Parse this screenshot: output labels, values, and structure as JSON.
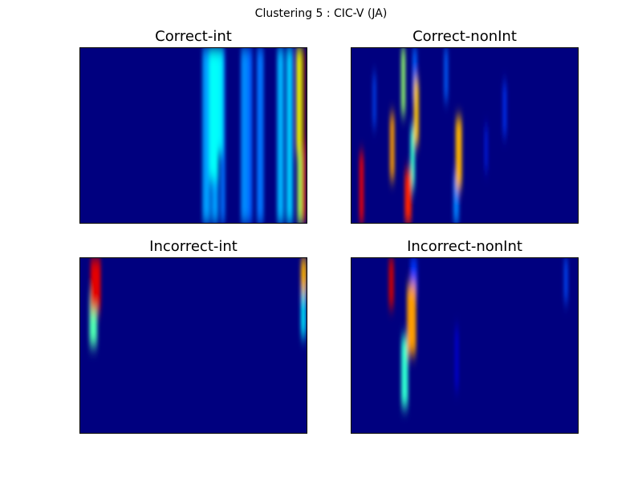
{
  "chart_data": {
    "type": "heatmap",
    "title": "Clustering 5 : CIC-V (JA)",
    "colormap": "jet",
    "background_color": "#00007f",
    "panels": [
      {
        "name": "Correct-int",
        "columns": [
          {
            "x": 0.54,
            "w": 0.035,
            "y0": 0.0,
            "y1": 1.0,
            "v": 0.28
          },
          {
            "x": 0.57,
            "w": 0.04,
            "y0": 0.0,
            "y1": 0.75,
            "v": 0.38
          },
          {
            "x": 0.595,
            "w": 0.035,
            "y0": 0.0,
            "y1": 0.6,
            "v": 0.36
          },
          {
            "x": 0.58,
            "w": 0.03,
            "y0": 0.6,
            "y1": 1.0,
            "v": 0.28
          },
          {
            "x": 0.62,
            "w": 0.02,
            "y0": 0.0,
            "y1": 1.0,
            "v": 0.24
          },
          {
            "x": 0.71,
            "w": 0.03,
            "y0": 0.0,
            "y1": 1.0,
            "v": 0.26
          },
          {
            "x": 0.73,
            "w": 0.03,
            "y0": 0.0,
            "y1": 1.0,
            "v": 0.22
          },
          {
            "x": 0.78,
            "w": 0.03,
            "y0": 0.0,
            "y1": 1.0,
            "v": 0.24
          },
          {
            "x": 0.87,
            "w": 0.03,
            "y0": 0.0,
            "y1": 1.0,
            "v": 0.3
          },
          {
            "x": 0.91,
            "w": 0.03,
            "y0": 0.0,
            "y1": 1.0,
            "v": 0.32
          },
          {
            "x": 0.955,
            "w": 0.022,
            "y0": 0.0,
            "y1": 0.6,
            "v": 0.62
          },
          {
            "x": 0.96,
            "w": 0.02,
            "y0": 0.6,
            "y1": 1.0,
            "v": 0.55
          },
          {
            "x": 0.98,
            "w": 0.016,
            "y0": 0.0,
            "y1": 0.55,
            "v": 1.0
          },
          {
            "x": 0.982,
            "w": 0.015,
            "y0": 0.55,
            "y1": 1.0,
            "v": 0.9
          }
        ]
      },
      {
        "name": "Correct-nonInt",
        "columns": [
          {
            "x": 0.035,
            "w": 0.018,
            "y0": 0.6,
            "y1": 1.0,
            "v": 0.88
          },
          {
            "x": 0.095,
            "w": 0.012,
            "y0": 0.15,
            "y1": 0.45,
            "v": 0.2
          },
          {
            "x": 0.17,
            "w": 0.02,
            "y0": 0.38,
            "y1": 0.75,
            "v": 0.72
          },
          {
            "x": 0.22,
            "w": 0.018,
            "y0": 0.0,
            "y1": 0.38,
            "v": 0.52
          },
          {
            "x": 0.235,
            "w": 0.03,
            "y0": 0.7,
            "y1": 1.0,
            "v": 0.84
          },
          {
            "x": 0.27,
            "w": 0.02,
            "y0": 0.0,
            "y1": 0.3,
            "v": 0.22
          },
          {
            "x": 0.275,
            "w": 0.022,
            "y0": 0.18,
            "y1": 0.55,
            "v": 0.68
          },
          {
            "x": 0.26,
            "w": 0.02,
            "y0": 0.45,
            "y1": 0.8,
            "v": 0.42
          },
          {
            "x": 0.41,
            "w": 0.016,
            "y0": 0.0,
            "y1": 0.3,
            "v": 0.22
          },
          {
            "x": 0.46,
            "w": 0.028,
            "y0": 0.4,
            "y1": 0.8,
            "v": 0.7
          },
          {
            "x": 0.45,
            "w": 0.025,
            "y0": 0.72,
            "y1": 1.0,
            "v": 0.25
          },
          {
            "x": 0.59,
            "w": 0.01,
            "y0": 0.45,
            "y1": 0.7,
            "v": 0.16
          },
          {
            "x": 0.67,
            "w": 0.014,
            "y0": 0.2,
            "y1": 0.5,
            "v": 0.18
          }
        ]
      },
      {
        "name": "Incorrect-int",
        "columns": [
          {
            "x": 0.045,
            "w": 0.045,
            "y0": 0.0,
            "y1": 0.3,
            "v": 0.9
          },
          {
            "x": 0.04,
            "w": 0.035,
            "y0": 0.2,
            "y1": 0.5,
            "v": 0.45
          },
          {
            "x": 0.975,
            "w": 0.025,
            "y0": 0.0,
            "y1": 0.2,
            "v": 0.7
          },
          {
            "x": 0.975,
            "w": 0.022,
            "y0": 0.15,
            "y1": 0.45,
            "v": 0.35
          }
        ]
      },
      {
        "name": "Incorrect-nonInt",
        "columns": [
          {
            "x": 0.165,
            "w": 0.022,
            "y0": 0.0,
            "y1": 0.28,
            "v": 0.92
          },
          {
            "x": 0.26,
            "w": 0.03,
            "y0": 0.0,
            "y1": 0.2,
            "v": 0.18
          },
          {
            "x": 0.245,
            "w": 0.04,
            "y0": 0.15,
            "y1": 0.55,
            "v": 0.72
          },
          {
            "x": 0.22,
            "w": 0.03,
            "y0": 0.45,
            "y1": 0.85,
            "v": 0.42
          },
          {
            "x": 0.46,
            "w": 0.01,
            "y0": 0.4,
            "y1": 0.75,
            "v": 0.12
          },
          {
            "x": 0.94,
            "w": 0.015,
            "y0": 0.0,
            "y1": 0.25,
            "v": 0.2
          }
        ]
      }
    ]
  }
}
